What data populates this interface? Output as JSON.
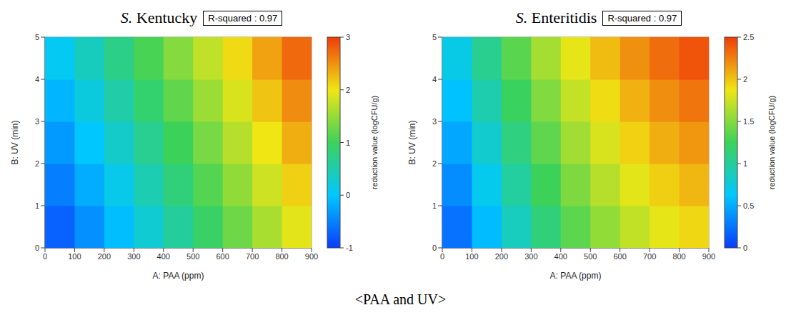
{
  "caption": "<PAA and UV>",
  "chart_data": [
    {
      "type": "heatmap",
      "title": "S. Kentucky",
      "annotation": "R-squared : 0.97",
      "x_label": "A: PAA (ppm)",
      "y_label": "B: UV (min)",
      "xlim": [
        0,
        900
      ],
      "xticks": [
        0,
        100,
        200,
        300,
        400,
        500,
        600,
        700,
        800,
        900
      ],
      "ylim": [
        0,
        5
      ],
      "yticks": [
        0,
        1,
        2,
        3,
        4,
        5
      ],
      "cells": {
        "x": [
          50,
          150,
          250,
          350,
          450,
          550,
          650,
          750,
          850
        ],
        "y": [
          0.5,
          1.5,
          2.5,
          3.5,
          4.5
        ],
        "values": [
          [
            -0.73,
            -0.4,
            -0.07,
            0.27,
            0.6,
            0.93,
            1.27,
            1.6,
            1.93
          ],
          [
            -0.53,
            -0.2,
            0.13,
            0.47,
            0.8,
            1.13,
            1.47,
            1.8,
            2.13
          ],
          [
            -0.33,
            0,
            0.33,
            0.67,
            1.0,
            1.33,
            1.67,
            2.0,
            2.33
          ],
          [
            -0.13,
            0.2,
            0.53,
            0.87,
            1.2,
            1.53,
            1.87,
            2.2,
            2.53
          ],
          [
            0.07,
            0.4,
            0.73,
            1.07,
            1.4,
            1.73,
            2.07,
            2.4,
            2.73
          ]
        ]
      },
      "colorbar": {
        "label": "reduction value (logCFU/g)",
        "zlim": [
          -1,
          3
        ],
        "zticks": [
          -1,
          0,
          1,
          2,
          3
        ]
      }
    },
    {
      "type": "heatmap",
      "title": "S. Enteritidis",
      "annotation": "R-squared : 0.97",
      "x_label": "A: PAA (ppm)",
      "y_label": "B: UV (min)",
      "xlim": [
        0,
        900
      ],
      "xticks": [
        0,
        100,
        200,
        300,
        400,
        500,
        600,
        700,
        800,
        900
      ],
      "ylim": [
        0,
        5
      ],
      "yticks": [
        0,
        1,
        2,
        3,
        4,
        5
      ],
      "cells": {
        "x": [
          50,
          150,
          250,
          350,
          450,
          550,
          650,
          750,
          850
        ],
        "y": [
          0.5,
          1.5,
          2.5,
          3.5,
          4.5
        ],
        "values": [
          [
            0.24,
            0.57,
            0.87,
            1.13,
            1.36,
            1.55,
            1.71,
            1.84,
            1.93
          ],
          [
            0.36,
            0.69,
            0.99,
            1.25,
            1.48,
            1.67,
            1.83,
            1.96,
            2.05
          ],
          [
            0.48,
            0.81,
            1.11,
            1.37,
            1.6,
            1.79,
            1.95,
            2.08,
            2.17
          ],
          [
            0.6,
            0.93,
            1.23,
            1.49,
            1.72,
            1.91,
            2.07,
            2.2,
            2.29
          ],
          [
            0.72,
            1.05,
            1.35,
            1.61,
            1.84,
            2.03,
            2.19,
            2.32,
            2.41
          ]
        ]
      },
      "colorbar": {
        "label": "reduction value (logCFU/g)",
        "zlim": [
          0,
          2.5
        ],
        "zticks": [
          0,
          0.5,
          1,
          1.5,
          2,
          2.5
        ]
      }
    }
  ]
}
